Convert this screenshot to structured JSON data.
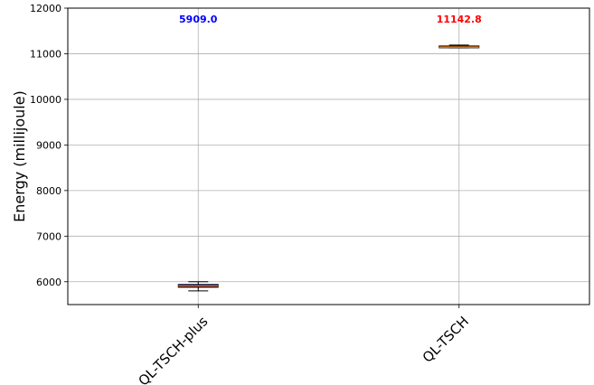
{
  "chart_data": {
    "type": "box",
    "ylabel": "Energy (millijoule)",
    "ylim": [
      5500,
      12000
    ],
    "yticks": [
      6000,
      7000,
      8000,
      9000,
      10000,
      11000,
      12000
    ],
    "grid": true,
    "categories": [
      "QL-TSCH-plus",
      "QL-TSCH"
    ],
    "boxes": [
      {
        "category": "QL-TSCH-plus",
        "whisker_low": 5800,
        "q1": 5880,
        "median": 5909.0,
        "q3": 5940,
        "whisker_high": 6000,
        "box_color": "#0000ff",
        "annotation": "5909.0",
        "annotation_color": "#0000ff"
      },
      {
        "category": "QL-TSCH",
        "whisker_low": 11130,
        "q1": 11138,
        "median": 11142.8,
        "q3": 11170,
        "whisker_high": 11190,
        "box_color": "#ff7f0e",
        "annotation": "11142.8",
        "annotation_color": "#ff0000"
      }
    ]
  }
}
